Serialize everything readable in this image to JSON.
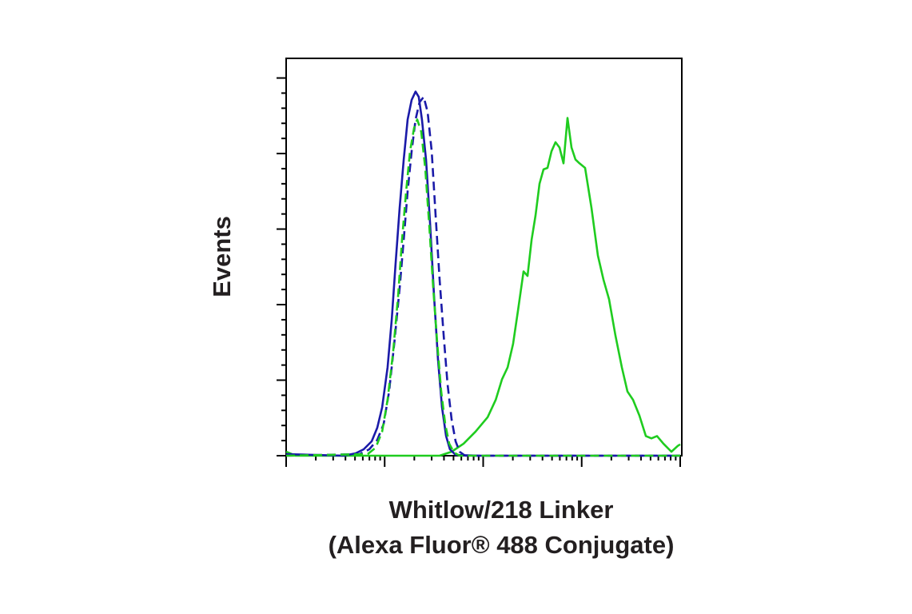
{
  "chart_data": {
    "type": "line",
    "y_label": "Events",
    "x_label": [
      "Whitlow/218 Linker",
      "(Alexa Fluor® 488 Conjugate)"
    ],
    "log_x": true,
    "xlim": [
      1,
      10000
    ],
    "xticks": [
      1,
      10,
      100,
      1000,
      10000
    ],
    "ylim": [
      0,
      526
    ],
    "yticks": [
      0,
      100,
      200,
      300,
      400,
      500
    ],
    "series": [
      {
        "color": "#1fcc1f",
        "dash": false,
        "x": [
          1,
          1.25,
          36.1,
          47.8,
          63.3,
          83.7,
          111,
          134,
          155,
          177,
          201,
          225,
          257,
          282,
          310,
          340,
          373,
          410,
          450,
          494,
          542,
          595,
          654,
          718,
          788,
          865,
          950,
          1082,
          1256,
          1459,
          1663,
          1897,
          2203,
          2557,
          2915,
          3322,
          3857,
          4479,
          5106,
          5821,
          6758,
          8148,
          9457,
          10000
        ],
        "values": [
          5.3,
          0,
          0,
          5.3,
          16,
          32,
          51,
          74,
          101,
          117,
          148,
          191,
          244,
          238,
          286,
          318,
          360,
          379,
          381,
          403,
          415,
          408,
          387,
          447,
          408,
          392,
          387,
          381,
          328,
          265,
          233,
          207,
          159,
          117,
          85,
          74,
          53,
          26,
          23,
          26,
          16,
          5.3,
          13,
          15
        ]
      },
      {
        "color": "#1a1aa8",
        "dash": false,
        "x": [
          1,
          3.84,
          5.08,
          6.12,
          7.38,
          8.41,
          9.42,
          10.7,
          11.8,
          12.9,
          14.2,
          15.6,
          17.1,
          18.8,
          20.6,
          22.2,
          23.9,
          26.3,
          28.9,
          31.7,
          34.8,
          38.2,
          42.0,
          46.0,
          52.5,
          91.9,
          10000
        ],
        "values": [
          2.1,
          0,
          3.2,
          8.5,
          19,
          37,
          64,
          117,
          180,
          254,
          328,
          392,
          445,
          471,
          482,
          475,
          445,
          392,
          307,
          212,
          127,
          64,
          26,
          8.5,
          1.1,
          0,
          0
        ]
      },
      {
        "color": "#1a1aa8",
        "dash": true,
        "x": [
          1,
          5.58,
          6.98,
          8.41,
          9.77,
          11.1,
          12.5,
          14.2,
          15.6,
          17.1,
          18.8,
          20.6,
          22.6,
          24.9,
          27.3,
          30.0,
          32.9,
          36.1,
          39.7,
          43.5,
          47.8,
          52.5,
          57.6,
          65.7,
          10000
        ],
        "values": [
          0,
          2.1,
          8.5,
          21,
          42,
          85,
          148,
          222,
          286,
          350,
          403,
          445,
          468,
          475,
          455,
          403,
          318,
          233,
          159,
          95,
          48,
          19,
          5.3,
          0,
          0
        ]
      },
      {
        "color": "#1fcc1f",
        "dash": true,
        "x": [
          1,
          6.72,
          8.11,
          9.42,
          10.7,
          12.2,
          13.7,
          15.0,
          16.5,
          18.1,
          19.9,
          21.4,
          23.5,
          25.8,
          28.3,
          31.1,
          34.2,
          37.5,
          41.2,
          45.2,
          50.6,
          57.6,
          10000
        ],
        "values": [
          0,
          2.1,
          10.6,
          32,
          74,
          138,
          212,
          286,
          350,
          403,
          434,
          445,
          429,
          381,
          307,
          222,
          148,
          85,
          42,
          16,
          4.2,
          0,
          0
        ]
      }
    ]
  }
}
